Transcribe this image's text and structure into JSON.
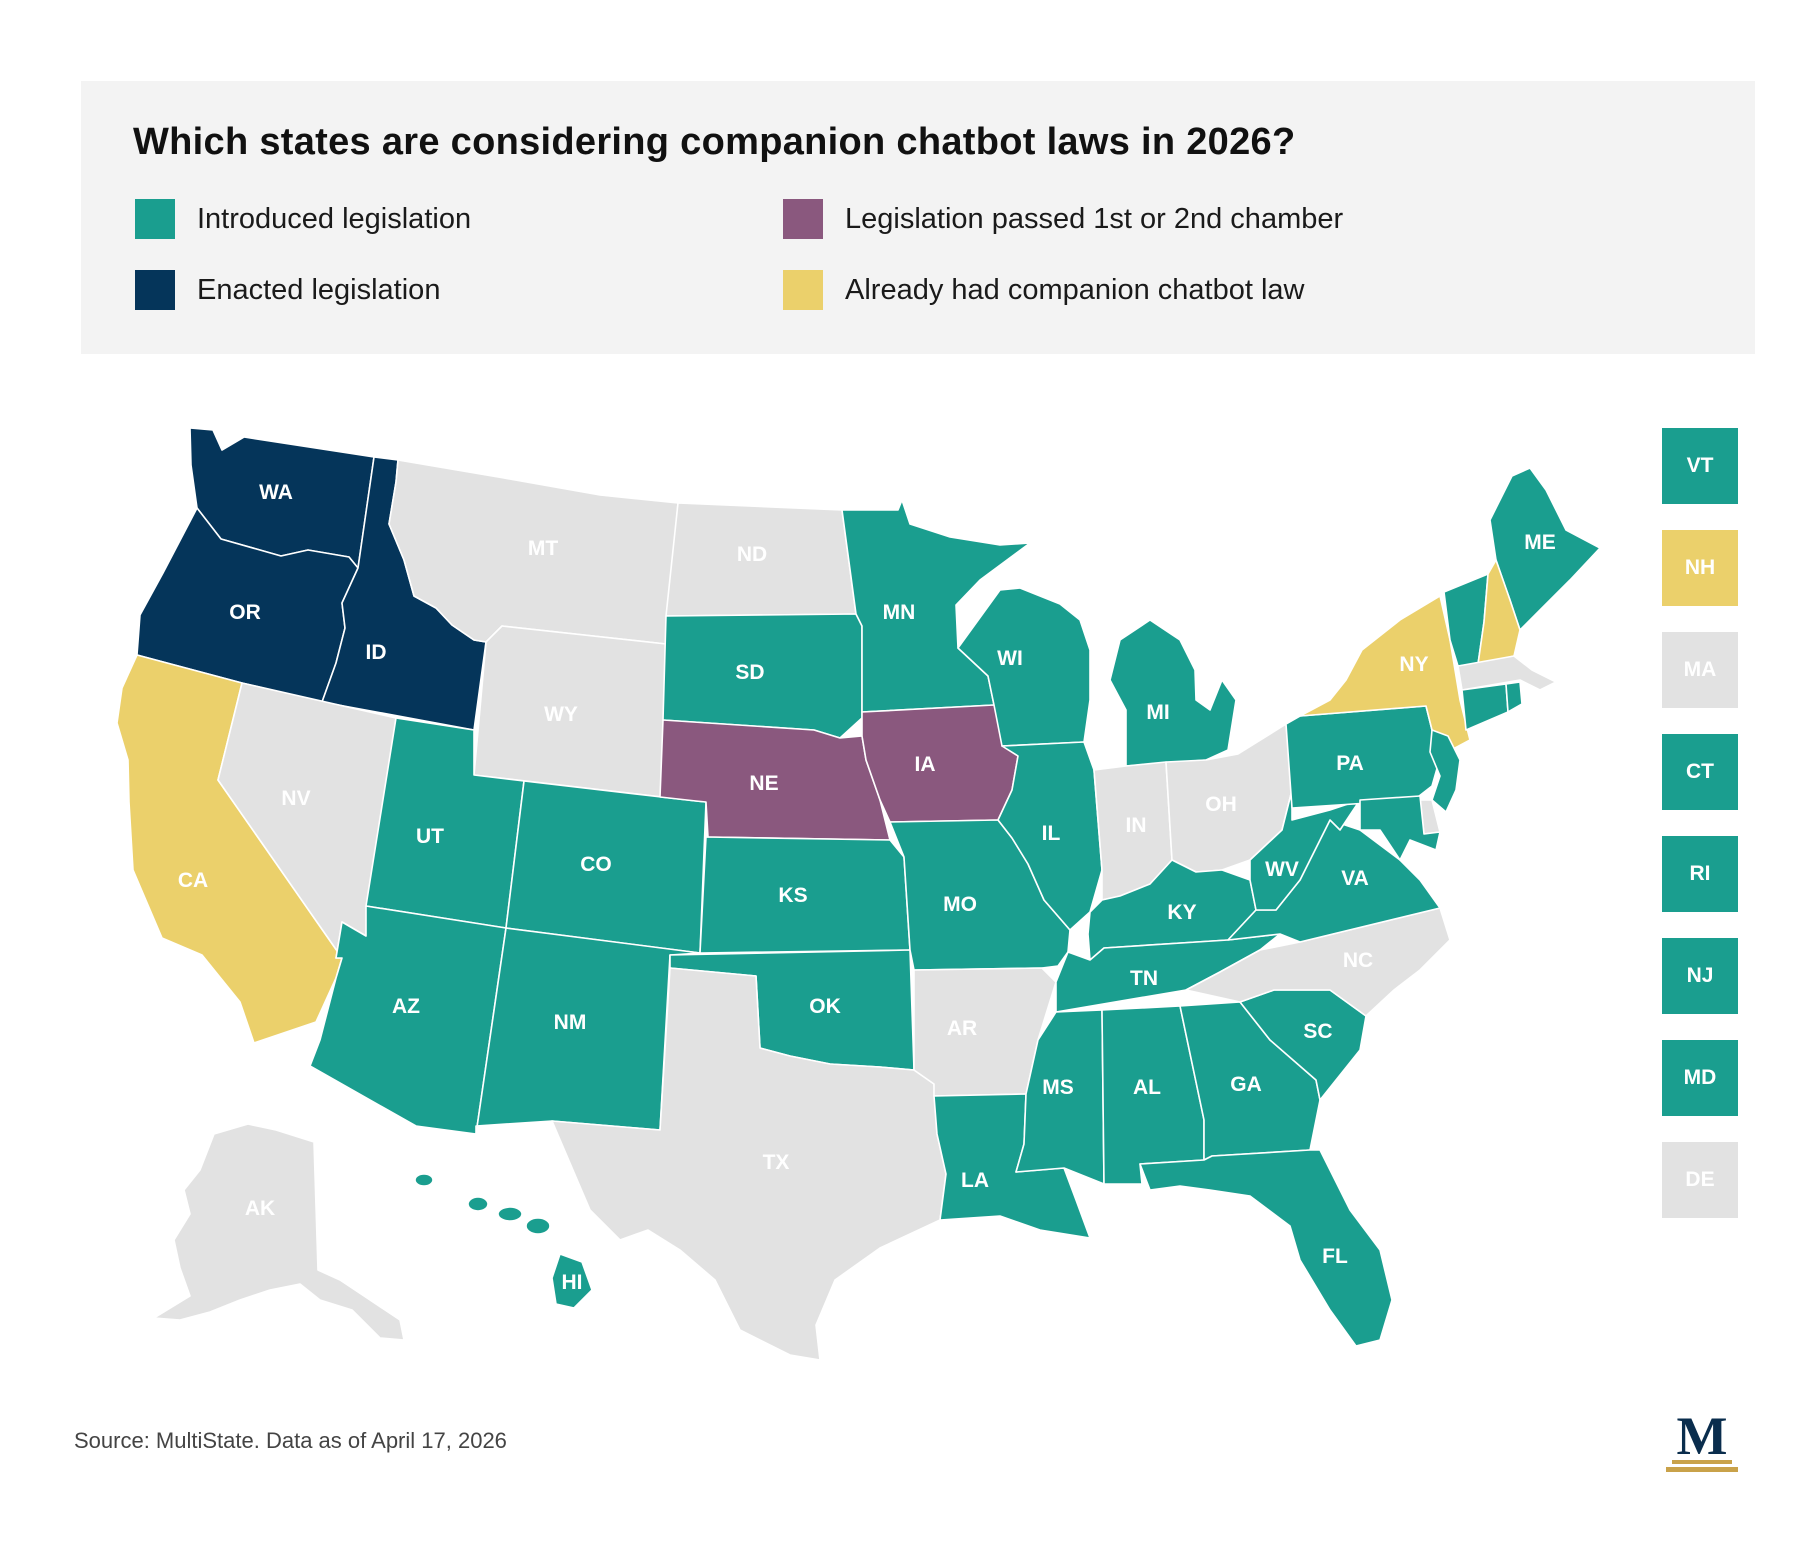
{
  "title": "Which states are considering companion chatbot laws in 2026?",
  "legend": [
    {
      "key": "introduced",
      "label": "Introduced legislation",
      "color": "#1a9e8f"
    },
    {
      "key": "passed",
      "label": "Legislation passed 1st or 2nd chamber",
      "color": "#8a587e"
    },
    {
      "key": "enacted",
      "label": "Enacted legislation",
      "color": "#05355a"
    },
    {
      "key": "already",
      "label": "Already had companion chatbot law",
      "color": "#ebd06b"
    }
  ],
  "none_color": "#e2e2e2",
  "states": [
    {
      "abbr": "WA",
      "status": "enacted"
    },
    {
      "abbr": "OR",
      "status": "enacted"
    },
    {
      "abbr": "ID",
      "status": "enacted"
    },
    {
      "abbr": "CA",
      "status": "already"
    },
    {
      "abbr": "NV",
      "status": "none"
    },
    {
      "abbr": "MT",
      "status": "none"
    },
    {
      "abbr": "WY",
      "status": "none"
    },
    {
      "abbr": "UT",
      "status": "introduced"
    },
    {
      "abbr": "AZ",
      "status": "introduced"
    },
    {
      "abbr": "CO",
      "status": "introduced"
    },
    {
      "abbr": "NM",
      "status": "introduced"
    },
    {
      "abbr": "ND",
      "status": "none"
    },
    {
      "abbr": "SD",
      "status": "introduced"
    },
    {
      "abbr": "NE",
      "status": "passed"
    },
    {
      "abbr": "KS",
      "status": "introduced"
    },
    {
      "abbr": "OK",
      "status": "introduced"
    },
    {
      "abbr": "TX",
      "status": "none"
    },
    {
      "abbr": "MN",
      "status": "introduced"
    },
    {
      "abbr": "IA",
      "status": "passed"
    },
    {
      "abbr": "MO",
      "status": "introduced"
    },
    {
      "abbr": "AR",
      "status": "none"
    },
    {
      "abbr": "LA",
      "status": "introduced"
    },
    {
      "abbr": "WI",
      "status": "introduced"
    },
    {
      "abbr": "IL",
      "status": "introduced"
    },
    {
      "abbr": "MI",
      "status": "introduced"
    },
    {
      "abbr": "IN",
      "status": "none"
    },
    {
      "abbr": "OH",
      "status": "none"
    },
    {
      "abbr": "KY",
      "status": "introduced"
    },
    {
      "abbr": "TN",
      "status": "introduced"
    },
    {
      "abbr": "MS",
      "status": "introduced"
    },
    {
      "abbr": "AL",
      "status": "introduced"
    },
    {
      "abbr": "GA",
      "status": "introduced"
    },
    {
      "abbr": "FL",
      "status": "introduced"
    },
    {
      "abbr": "SC",
      "status": "introduced"
    },
    {
      "abbr": "NC",
      "status": "none"
    },
    {
      "abbr": "VA",
      "status": "introduced"
    },
    {
      "abbr": "WV",
      "status": "introduced"
    },
    {
      "abbr": "PA",
      "status": "introduced"
    },
    {
      "abbr": "NY",
      "status": "already"
    },
    {
      "abbr": "ME",
      "status": "introduced"
    },
    {
      "abbr": "AK",
      "status": "none"
    },
    {
      "abbr": "HI",
      "status": "introduced"
    }
  ],
  "small_states": [
    {
      "abbr": "VT",
      "status": "introduced"
    },
    {
      "abbr": "NH",
      "status": "already"
    },
    {
      "abbr": "MA",
      "status": "none"
    },
    {
      "abbr": "CT",
      "status": "introduced"
    },
    {
      "abbr": "RI",
      "status": "introduced"
    },
    {
      "abbr": "NJ",
      "status": "introduced"
    },
    {
      "abbr": "MD",
      "status": "introduced"
    },
    {
      "abbr": "DE",
      "status": "none"
    }
  ],
  "source": "Source: MultiState. Data as of April 17, 2026",
  "logo_letter": "M"
}
